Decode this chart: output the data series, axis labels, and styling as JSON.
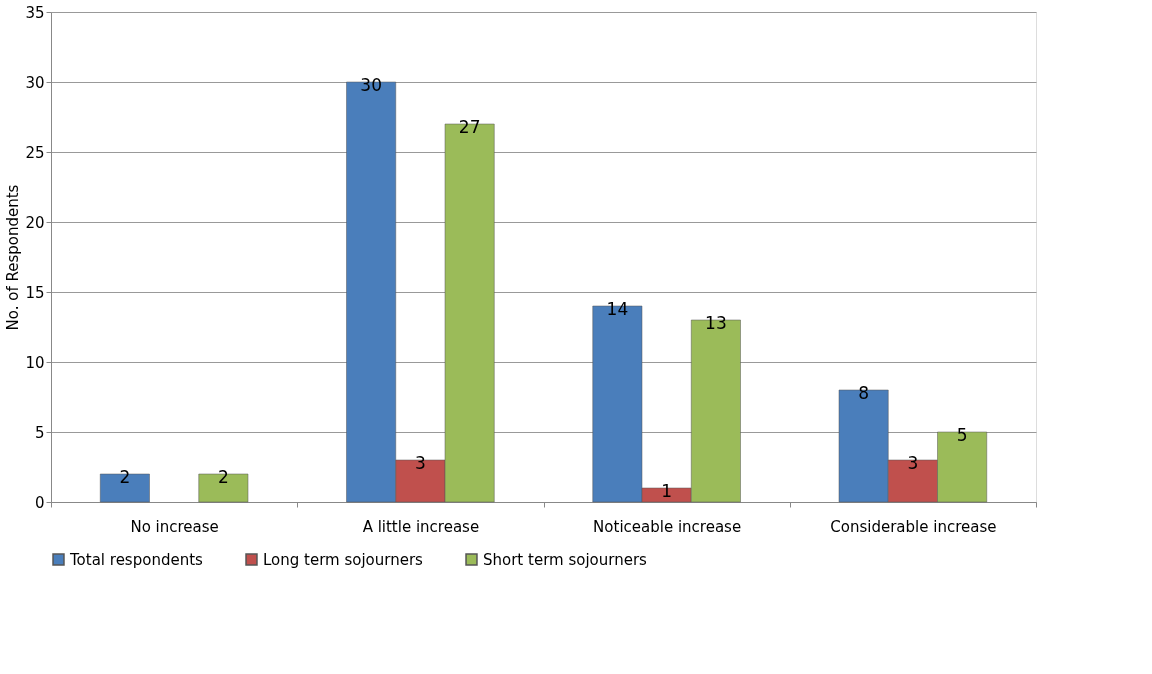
{
  "chart_data": {
    "type": "bar",
    "ylabel": "No. of Respondents",
    "categories": [
      "No increase",
      "A little increase",
      "Noticeable increase",
      "Considerable increase"
    ],
    "series": [
      {
        "name": "Total respondents",
        "color": "#4a7ebb",
        "values": [
          2,
          30,
          14,
          8
        ]
      },
      {
        "name": "Long term sojourners",
        "color": "#c0504d",
        "values": [
          null,
          3,
          1,
          3
        ]
      },
      {
        "name": "Short term sojourners",
        "color": "#9bbb59",
        "values": [
          2,
          27,
          13,
          5
        ]
      }
    ],
    "ylim": [
      0,
      35
    ],
    "yticks": [
      0,
      5,
      10,
      15,
      20,
      25,
      30,
      35
    ],
    "grid": "y",
    "legend": "bottom",
    "data_labels": true
  }
}
